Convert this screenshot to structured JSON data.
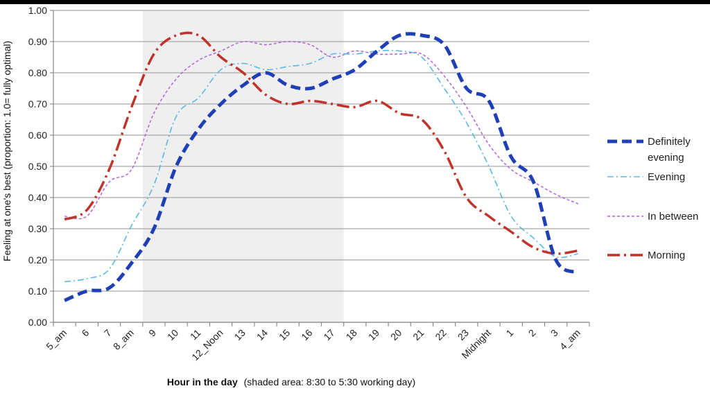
{
  "chart_data": {
    "type": "line",
    "title": "",
    "xlabel": "Hour in the day",
    "xlabel_note": "(shaded area: 8:30 to 5:30 working day)",
    "ylabel": "Feeling at one's best (proportion: 1.0= fully optimal)",
    "ylim": [
      0,
      1
    ],
    "yticks": [
      "0.00",
      "0.10",
      "0.20",
      "0.30",
      "0.40",
      "0.50",
      "0.60",
      "0.70",
      "0.80",
      "0.90",
      "1.00"
    ],
    "grid": "horizontal",
    "legend_position": "right",
    "shaded_region": [
      8.5,
      17.5
    ],
    "categories": [
      "5_am",
      "6",
      "7",
      "8_am",
      "9",
      "10",
      "11",
      "12_Noon",
      "13",
      "14",
      "15",
      "16",
      "17",
      "18",
      "19",
      "20",
      "21",
      "22",
      "23",
      "Midnight",
      "1",
      "2",
      "3",
      "4_am"
    ],
    "series": [
      {
        "name": "Definitely evening",
        "name_lines": [
          "Definitely",
          "evening"
        ],
        "color": "#1f3fb4",
        "style": "dashed-heavy",
        "values": [
          0.07,
          0.1,
          0.11,
          0.19,
          0.3,
          0.5,
          0.62,
          0.7,
          0.76,
          0.8,
          0.76,
          0.75,
          0.78,
          0.81,
          0.87,
          0.92,
          0.92,
          0.89,
          0.75,
          0.71,
          0.53,
          0.45,
          0.2,
          0.16
        ]
      },
      {
        "name": "Evening",
        "name_lines": [
          "Evening"
        ],
        "color": "#5bb8e6",
        "style": "dash-dot",
        "values": [
          0.13,
          0.14,
          0.17,
          0.31,
          0.44,
          0.66,
          0.72,
          0.81,
          0.83,
          0.81,
          0.82,
          0.83,
          0.86,
          0.86,
          0.87,
          0.87,
          0.85,
          0.75,
          0.64,
          0.5,
          0.34,
          0.27,
          0.21,
          0.22
        ]
      },
      {
        "name": "In between",
        "name_lines": [
          "In between"
        ],
        "color": "#b35fe0",
        "style": "short-dash",
        "values": [
          0.34,
          0.34,
          0.45,
          0.49,
          0.67,
          0.78,
          0.84,
          0.87,
          0.9,
          0.89,
          0.9,
          0.89,
          0.85,
          0.87,
          0.86,
          0.86,
          0.86,
          0.79,
          0.69,
          0.57,
          0.49,
          0.45,
          0.41,
          0.38
        ]
      },
      {
        "name": "Morning",
        "name_lines": [
          "Morning"
        ],
        "color": "#c0322a",
        "style": "long-dash-dot",
        "values": [
          0.33,
          0.36,
          0.49,
          0.69,
          0.86,
          0.92,
          0.92,
          0.85,
          0.8,
          0.73,
          0.7,
          0.71,
          0.7,
          0.69,
          0.71,
          0.67,
          0.65,
          0.55,
          0.4,
          0.34,
          0.29,
          0.24,
          0.22,
          0.23
        ]
      }
    ]
  }
}
